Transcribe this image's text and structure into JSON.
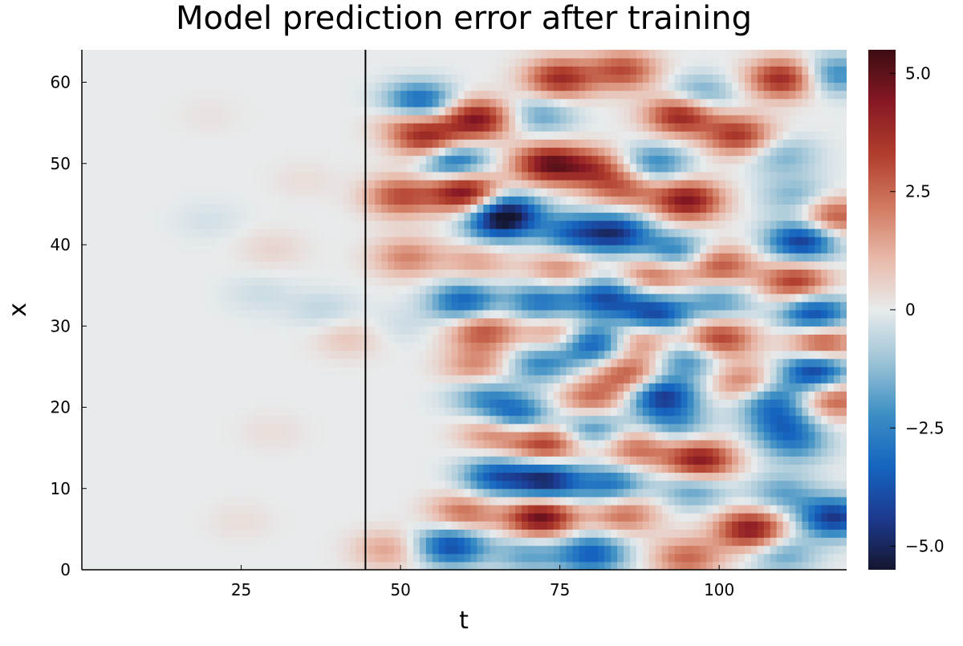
{
  "chart_data": {
    "type": "heatmap",
    "title": "Model prediction error after training",
    "xlabel": "t",
    "ylabel": "x",
    "xlim": [
      0,
      120
    ],
    "ylim": [
      0,
      64
    ],
    "x_ticks": [
      {
        "value": 25,
        "label": "25"
      },
      {
        "value": 50,
        "label": "50"
      },
      {
        "value": 75,
        "label": "75"
      },
      {
        "value": 100,
        "label": "100"
      }
    ],
    "y_ticks": [
      {
        "value": 0,
        "label": "0"
      },
      {
        "value": 10,
        "label": "10"
      },
      {
        "value": 20,
        "label": "20"
      },
      {
        "value": 30,
        "label": "30"
      },
      {
        "value": 40,
        "label": "40"
      },
      {
        "value": 50,
        "label": "50"
      },
      {
        "value": 60,
        "label": "60"
      }
    ],
    "colorbar": {
      "range": [
        -5.5,
        5.5
      ],
      "ticks": [
        {
          "value": 5.0,
          "label": "5.0"
        },
        {
          "value": 2.5,
          "label": "2.5"
        },
        {
          "value": 0,
          "label": "0"
        },
        {
          "value": -2.5,
          "label": "−2.5"
        },
        {
          "value": -5.0,
          "label": "−5.0"
        }
      ],
      "colors": [
        "#14162f",
        "#1d3a8f",
        "#1565c0",
        "#3d8fc4",
        "#9cc3d6",
        "#e8ebec",
        "#e8b8a8",
        "#d0785e",
        "#b03d2c",
        "#871824",
        "#3b0d12"
      ],
      "stops": [
        0,
        0.1,
        0.2,
        0.3,
        0.4,
        0.5,
        0.6,
        0.7,
        0.8,
        0.9,
        1
      ]
    },
    "vertical_line": {
      "x": 44.5,
      "color": "#000000"
    },
    "blobs": [
      {
        "t": 53,
        "x": 57.5,
        "v": -3.8
      },
      {
        "t": 62,
        "x": 55.5,
        "v": 4.5
      },
      {
        "t": 55,
        "x": 52.5,
        "v": 3.5
      },
      {
        "t": 58,
        "x": 50.5,
        "v": -4.0
      },
      {
        "t": 75,
        "x": 60.5,
        "v": 3.8
      },
      {
        "t": 85,
        "x": 61.5,
        "v": 3.0
      },
      {
        "t": 97,
        "x": 58.5,
        "v": -2.0
      },
      {
        "t": 110,
        "x": 60.5,
        "v": 4.0
      },
      {
        "t": 118,
        "x": 61,
        "v": -2.5
      },
      {
        "t": 94,
        "x": 56,
        "v": 4.2
      },
      {
        "t": 103,
        "x": 53.5,
        "v": 3.5
      },
      {
        "t": 72,
        "x": 56,
        "v": -1.8
      },
      {
        "t": 80,
        "x": 49.5,
        "v": 3.0
      },
      {
        "t": 73,
        "x": 50,
        "v": 4.5
      },
      {
        "t": 90,
        "x": 50,
        "v": -2.5
      },
      {
        "t": 110,
        "x": 51,
        "v": -1.5
      },
      {
        "t": 60,
        "x": 46.5,
        "v": 4.8
      },
      {
        "t": 50,
        "x": 46,
        "v": 3.0
      },
      {
        "t": 67,
        "x": 44,
        "v": -4.2
      },
      {
        "t": 85,
        "x": 47,
        "v": 2.5
      },
      {
        "t": 95,
        "x": 45.5,
        "v": 4.5
      },
      {
        "t": 112,
        "x": 46,
        "v": -1.5
      },
      {
        "t": 118,
        "x": 43.5,
        "v": 3.0
      },
      {
        "t": 65,
        "x": 42.5,
        "v": -2.8
      },
      {
        "t": 77,
        "x": 41.5,
        "v": -3.0
      },
      {
        "t": 84,
        "x": 41.5,
        "v": -4.2
      },
      {
        "t": 93,
        "x": 39,
        "v": -3.0
      },
      {
        "t": 113,
        "x": 40.5,
        "v": -4.5
      },
      {
        "t": 51,
        "x": 38.5,
        "v": 2.0
      },
      {
        "t": 62,
        "x": 38,
        "v": 1.5
      },
      {
        "t": 75,
        "x": 37,
        "v": 2.0
      },
      {
        "t": 90,
        "x": 36.5,
        "v": 2.8
      },
      {
        "t": 100,
        "x": 37.5,
        "v": 3.0
      },
      {
        "t": 112,
        "x": 35.5,
        "v": 3.5
      },
      {
        "t": 60,
        "x": 33,
        "v": -3.5
      },
      {
        "t": 72,
        "x": 33,
        "v": -3.0
      },
      {
        "t": 82,
        "x": 33.5,
        "v": -3.8
      },
      {
        "t": 90,
        "x": 31.5,
        "v": -4.2
      },
      {
        "t": 100,
        "x": 33,
        "v": -2.0
      },
      {
        "t": 115,
        "x": 31.5,
        "v": -4.2
      },
      {
        "t": 63,
        "x": 29.5,
        "v": 3.0
      },
      {
        "t": 75,
        "x": 29,
        "v": 2.5
      },
      {
        "t": 88,
        "x": 28.5,
        "v": 2.5
      },
      {
        "t": 100,
        "x": 28.5,
        "v": 3.5
      },
      {
        "t": 116,
        "x": 28,
        "v": 3.5
      },
      {
        "t": 72,
        "x": 25.5,
        "v": -2.5
      },
      {
        "t": 80,
        "x": 28,
        "v": -4.2
      },
      {
        "t": 95,
        "x": 26,
        "v": -2.5
      },
      {
        "t": 115,
        "x": 24.5,
        "v": -4.5
      },
      {
        "t": 62,
        "x": 25,
        "v": 2.0
      },
      {
        "t": 86,
        "x": 24,
        "v": 3.0
      },
      {
        "t": 104,
        "x": 23,
        "v": 2.5
      },
      {
        "t": 63,
        "x": 21.5,
        "v": -2.0
      },
      {
        "t": 80,
        "x": 21,
        "v": 2.5
      },
      {
        "t": 91,
        "x": 21.5,
        "v": -4.5
      },
      {
        "t": 108,
        "x": 21,
        "v": -2.8
      },
      {
        "t": 118,
        "x": 21,
        "v": 2.8
      },
      {
        "t": 68,
        "x": 19,
        "v": -3.5
      },
      {
        "t": 80,
        "x": 17.5,
        "v": -2.5
      },
      {
        "t": 93,
        "x": 18,
        "v": -2.0
      },
      {
        "t": 110,
        "x": 18,
        "v": -2.5
      },
      {
        "t": 65,
        "x": 17,
        "v": 2.5
      },
      {
        "t": 73,
        "x": 15.5,
        "v": 3.5
      },
      {
        "t": 87,
        "x": 15,
        "v": 2.5
      },
      {
        "t": 97,
        "x": 13.5,
        "v": 4.5
      },
      {
        "t": 112,
        "x": 15.5,
        "v": -2.0
      },
      {
        "t": 65,
        "x": 11.5,
        "v": -3.5
      },
      {
        "t": 73,
        "x": 11,
        "v": -4.8
      },
      {
        "t": 83,
        "x": 10.5,
        "v": -3.0
      },
      {
        "t": 96,
        "x": 10,
        "v": -2.0
      },
      {
        "t": 110,
        "x": 9.5,
        "v": -1.8
      },
      {
        "t": 60,
        "x": 7,
        "v": 2.5
      },
      {
        "t": 72,
        "x": 6.5,
        "v": 5.0
      },
      {
        "t": 85,
        "x": 7,
        "v": 2.5
      },
      {
        "t": 105,
        "x": 5,
        "v": 4.5
      },
      {
        "t": 118,
        "x": 6.5,
        "v": -4.5
      },
      {
        "t": 58,
        "x": 3,
        "v": -4.0
      },
      {
        "t": 70,
        "x": 2,
        "v": -1.8
      },
      {
        "t": 80,
        "x": 2,
        "v": -3.5
      },
      {
        "t": 95,
        "x": 1.5,
        "v": 2.5
      },
      {
        "t": 110,
        "x": 2,
        "v": -1.8
      },
      {
        "t": 48,
        "x": 2.5,
        "v": 1.5
      },
      {
        "t": 52,
        "x": 55,
        "v": 2.5
      },
      {
        "t": 50,
        "x": 30,
        "v": -0.4
      },
      {
        "t": 42,
        "x": 28.5,
        "v": 0.8
      },
      {
        "t": 38,
        "x": 32,
        "v": -0.6
      },
      {
        "t": 30,
        "x": 39.5,
        "v": 0.5
      },
      {
        "t": 28,
        "x": 34,
        "v": -0.4
      },
      {
        "t": 20,
        "x": 43,
        "v": -0.3
      },
      {
        "t": 35,
        "x": 48,
        "v": 0.3
      },
      {
        "t": 30,
        "x": 17,
        "v": 0.3
      },
      {
        "t": 25,
        "x": 6,
        "v": 0.3
      },
      {
        "t": 20,
        "x": 56,
        "v": 0.2
      }
    ]
  }
}
